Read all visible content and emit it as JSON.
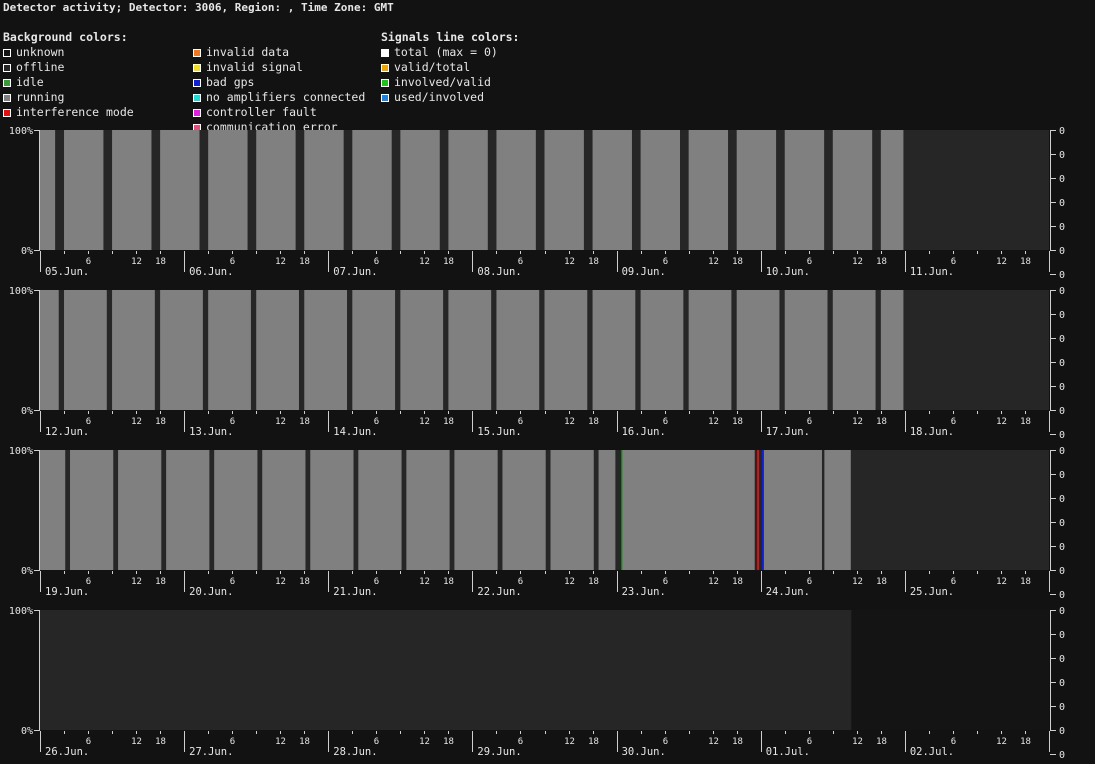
{
  "title": "Detector activity; Detector: 3006, Region: , Time Zone: GMT",
  "legend": {
    "background": {
      "heading": "Background colors:",
      "items": [
        {
          "label": "unknown",
          "color": "#141414"
        },
        {
          "label": "offline",
          "color": "#262626"
        },
        {
          "label": "idle",
          "color": "#3a9a3a"
        },
        {
          "label": "running",
          "color": "#808080"
        },
        {
          "label": "interference mode",
          "color": "#e01010"
        },
        {
          "label": "invalid data",
          "color": "#f07820"
        },
        {
          "label": "invalid signal",
          "color": "#f0e020"
        },
        {
          "label": "bad gps",
          "color": "#1020d0"
        },
        {
          "label": "no amplifiers connected",
          "color": "#20d8d8"
        },
        {
          "label": "controller fault",
          "color": "#e020e0"
        },
        {
          "label": "communication error",
          "color": "#e05078"
        }
      ]
    },
    "signals": {
      "heading": "Signals line colors:",
      "items": [
        {
          "label": "total (max = 0)",
          "color": "#ffffff"
        },
        {
          "label": "valid/total",
          "color": "#f0a800"
        },
        {
          "label": "involved/valid",
          "color": "#20c020"
        },
        {
          "label": "used/involved",
          "color": "#2080e0"
        }
      ]
    }
  },
  "chart_data": [
    {
      "type": "area",
      "y_left_ticks": [
        "100%",
        "0%"
      ],
      "y_right_ticks": [
        "0",
        "0",
        "0",
        "0",
        "0",
        "0",
        "0"
      ],
      "hour_ticks": [
        "6",
        "12",
        "18"
      ],
      "days": [
        "05.Jun.",
        "06.Jun.",
        "07.Jun.",
        "08.Jun.",
        "09.Jun.",
        "10.Jun.",
        "11.Jun."
      ],
      "running_periods": [
        [
          0.0,
          0.63
        ],
        [
          1.0,
          2.64
        ],
        [
          3.0,
          4.64
        ],
        [
          5.0,
          6.64
        ],
        [
          7.0,
          8.64
        ],
        [
          9.0,
          10.64
        ],
        [
          11.0,
          12.64
        ],
        [
          13.0,
          14.64
        ],
        [
          15.0,
          16.64
        ],
        [
          17.0,
          18.64
        ],
        [
          19.0,
          20.64
        ],
        [
          21.0,
          22.64
        ],
        [
          23.0,
          24.64
        ],
        [
          25.0,
          26.64
        ],
        [
          27.0,
          28.64
        ],
        [
          29.0,
          30.64
        ],
        [
          31.0,
          32.64
        ],
        [
          33.0,
          34.64
        ],
        [
          35.0,
          35.94
        ]
      ],
      "event_lines": []
    },
    {
      "type": "area",
      "y_left_ticks": [
        "100%",
        "0%"
      ],
      "y_right_ticks": [
        "0",
        "0",
        "0",
        "0",
        "0",
        "0",
        "0"
      ],
      "hour_ticks": [
        "6",
        "12",
        "18"
      ],
      "days": [
        "12.Jun.",
        "13.Jun.",
        "14.Jun.",
        "15.Jun.",
        "16.Jun.",
        "17.Jun.",
        "18.Jun."
      ],
      "running_periods": [
        [
          0.0,
          0.78
        ],
        [
          1.0,
          2.78
        ],
        [
          3.0,
          4.78
        ],
        [
          5.0,
          6.78
        ],
        [
          7.0,
          8.78
        ],
        [
          9.0,
          10.78
        ],
        [
          11.0,
          12.78
        ],
        [
          13.0,
          14.78
        ],
        [
          15.0,
          16.78
        ],
        [
          17.0,
          18.78
        ],
        [
          19.0,
          20.78
        ],
        [
          21.0,
          22.78
        ],
        [
          23.0,
          24.78
        ],
        [
          25.0,
          26.78
        ],
        [
          27.0,
          28.78
        ],
        [
          29.0,
          30.78
        ],
        [
          31.0,
          32.78
        ],
        [
          33.0,
          34.78
        ],
        [
          35.0,
          35.94
        ]
      ],
      "event_lines": []
    },
    {
      "type": "area",
      "y_left_ticks": [
        "100%",
        "0%"
      ],
      "y_right_ticks": [
        "0",
        "0",
        "0",
        "0",
        "0",
        "0",
        "0"
      ],
      "hour_ticks": [
        "6",
        "12",
        "18"
      ],
      "days": [
        "19.Jun.",
        "20.Jun.",
        "21.Jun.",
        "22.Jun.",
        "23.Jun.",
        "24.Jun.",
        "25.Jun."
      ],
      "running_periods": [
        [
          0.0,
          1.05
        ],
        [
          1.25,
          3.05
        ],
        [
          3.25,
          5.05
        ],
        [
          5.25,
          7.05
        ],
        [
          7.25,
          9.05
        ],
        [
          9.25,
          11.05
        ],
        [
          11.25,
          13.05
        ],
        [
          13.25,
          15.05
        ],
        [
          15.25,
          17.05
        ],
        [
          17.25,
          19.05
        ],
        [
          19.25,
          21.05
        ],
        [
          21.25,
          23.05
        ],
        [
          23.25,
          23.95
        ],
        [
          24.25,
          29.75
        ],
        [
          30.1,
          32.55
        ],
        [
          32.65,
          33.75
        ]
      ],
      "idle_periods": [
        [
          24.2,
          24.25
        ]
      ],
      "event_lines": [
        {
          "at": 29.85,
          "color": "#e01010"
        },
        {
          "at": 30.05,
          "color": "#1020d0"
        }
      ]
    },
    {
      "type": "area",
      "y_left_ticks": [
        "100%",
        "0%"
      ],
      "y_right_ticks": [
        "0",
        "0",
        "0",
        "0",
        "0",
        "0",
        "0"
      ],
      "hour_ticks": [
        "6",
        "12",
        "18"
      ],
      "days": [
        "26.Jun.",
        "27.Jun.",
        "28.Jun.",
        "29.Jun.",
        "30.Jun.",
        "01.Jul.",
        "02.Jul."
      ],
      "running_periods": [],
      "event_lines": []
    }
  ]
}
